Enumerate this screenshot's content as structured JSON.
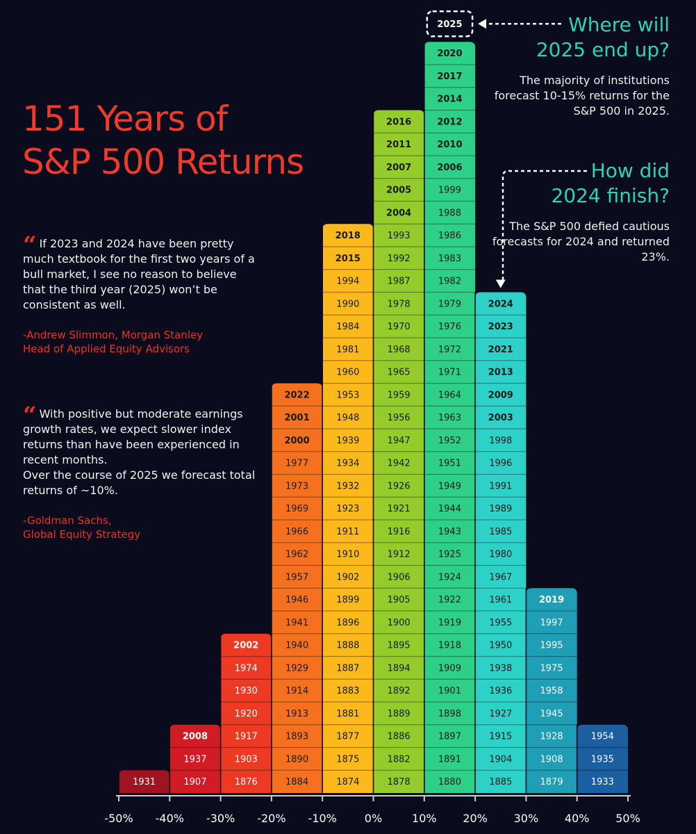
{
  "title_line1": "151 Years of",
  "title_line2": "S&P 500 Returns",
  "quote1": {
    "text": "If 2023 and 2024 have been pretty much textbook for the first two years of a bull market, I see no reason to believe that the third year (2025) won’t be consistent as well.",
    "attribution_line1": "-Andrew Slimmon, Morgan Stanley",
    "attribution_line2": "Head of Applied Equity Advisors"
  },
  "quote2": {
    "text": "With positive but moderate earnings growth rates, we expect slower index returns than have been experienced in recent months.",
    "text2": "Over the course of 2025 we forecast total returns of ~10%.",
    "attribution_line1": "-Goldman Sachs,",
    "attribution_line2": "Global Equity Strategy"
  },
  "callout1": {
    "heading_line1": "Where will",
    "heading_line2": "2025 end up?",
    "body": "The majority of institutions forecast 10-15% returns for the S&P 500 in 2025."
  },
  "callout2": {
    "heading_line1": "How did",
    "heading_line2": "2024 finish?",
    "body": "The S&P 500 defied cautious forecasts for 2024 and returned 23%."
  },
  "colors": {
    "background": "#0a0b1c",
    "title": "#f03a2c",
    "accent_teal": "#2fd3b0",
    "quote_red": "#e8342a"
  },
  "chart_data": {
    "type": "histogram",
    "title": "151 Years of S&P 500 Returns",
    "x_tick_labels": [
      "-50%",
      "-40%",
      "-30%",
      "-20%",
      "-10%",
      "0%",
      "10%",
      "20%",
      "30%",
      "40%",
      "50%"
    ],
    "bin_unit": "annual return %",
    "bins": [
      {
        "range": [
          -50,
          -40
        ],
        "color": "#9e1420",
        "text_color": "#ffffff",
        "years": [
          "1931"
        ]
      },
      {
        "range": [
          -40,
          -30
        ],
        "color": "#d11c26",
        "text_color": "#ffffff",
        "years": [
          "1907",
          "1937",
          "2008"
        ]
      },
      {
        "range": [
          -30,
          -20
        ],
        "color": "#ed3a24",
        "text_color": "#ffffff",
        "years": [
          "1876",
          "1903",
          "1917",
          "1920",
          "1930",
          "1974",
          "2002"
        ]
      },
      {
        "range": [
          -20,
          -10
        ],
        "color": "#f5701f",
        "text_color": "#1a1a1a",
        "years": [
          "1884",
          "1890",
          "1893",
          "1913",
          "1914",
          "1929",
          "1940",
          "1941",
          "1946",
          "1957",
          "1962",
          "1966",
          "1969",
          "1973",
          "1977",
          "2000",
          "2001",
          "2022"
        ]
      },
      {
        "range": [
          -10,
          0
        ],
        "color": "#fbb91c",
        "text_color": "#1a1a1a",
        "years": [
          "1874",
          "1875",
          "1877",
          "1881",
          "1883",
          "1887",
          "1888",
          "1896",
          "1899",
          "1902",
          "1910",
          "1911",
          "1923",
          "1932",
          "1934",
          "1939",
          "1948",
          "1953",
          "1960",
          "1981",
          "1984",
          "1990",
          "1994",
          "2015",
          "2018"
        ]
      },
      {
        "range": [
          0,
          10
        ],
        "color": "#94cc2c",
        "text_color": "#1a1a1a",
        "years": [
          "1878",
          "1882",
          "1886",
          "1889",
          "1892",
          "1894",
          "1895",
          "1900",
          "1905",
          "1906",
          "1912",
          "1916",
          "1921",
          "1926",
          "1942",
          "1947",
          "1956",
          "1959",
          "1965",
          "1968",
          "1970",
          "1978",
          "1987",
          "1992",
          "1993",
          "2004",
          "2005",
          "2007",
          "2011",
          "2016"
        ]
      },
      {
        "range": [
          10,
          20
        ],
        "color": "#2ecf86",
        "text_color": "#1a1a1a",
        "years": [
          "1880",
          "1891",
          "1897",
          "1898",
          "1901",
          "1909",
          "1918",
          "1919",
          "1922",
          "1924",
          "1925",
          "1943",
          "1944",
          "1949",
          "1951",
          "1952",
          "1963",
          "1964",
          "1971",
          "1972",
          "1976",
          "1979",
          "1982",
          "1983",
          "1986",
          "1988",
          "1999",
          "2006",
          "2010",
          "2012",
          "2014",
          "2017",
          "2020"
        ]
      },
      {
        "range": [
          20,
          30
        ],
        "color": "#2ed1c8",
        "text_color": "#1a1a1a",
        "years": [
          "1885",
          "1904",
          "1915",
          "1927",
          "1936",
          "1938",
          "1950",
          "1955",
          "1961",
          "1967",
          "1980",
          "1985",
          "1989",
          "1991",
          "1996",
          "1998",
          "2003",
          "2009",
          "2013",
          "2021",
          "2023",
          "2024"
        ]
      },
      {
        "range": [
          30,
          40
        ],
        "color": "#1f9eb6",
        "text_color": "#ffffff",
        "years": [
          "1879",
          "1908",
          "1928",
          "1945",
          "1958",
          "1975",
          "1995",
          "1997",
          "2019"
        ]
      },
      {
        "range": [
          40,
          50
        ],
        "color": "#1c5fa0",
        "text_color": "#ffffff",
        "years": [
          "1933",
          "1935",
          "1954"
        ]
      }
    ],
    "bold_years": [
      "2008",
      "2002",
      "2022",
      "2001",
      "2000",
      "2018",
      "2015",
      "2016",
      "2011",
      "2007",
      "2005",
      "2004",
      "2020",
      "2017",
      "2014",
      "2012",
      "2010",
      "2006",
      "2024",
      "2023",
      "2021",
      "2013",
      "2009",
      "2003",
      "2019"
    ],
    "forecast_label": "2025"
  }
}
